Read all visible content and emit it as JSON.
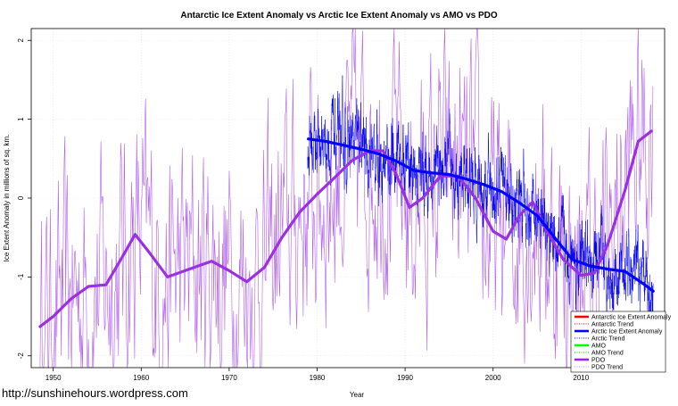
{
  "watermark": "http://sunshinehours.wordpress.com",
  "chart_data": {
    "type": "line",
    "title": "Antarctic Ice Extent Anomaly vs Arctic Ice Extent Anomaly vs AMO vs PDO",
    "xlabel": "Year",
    "ylabel": "Ice Extent Anomaly in millions of sq. km.",
    "xlim": [
      1947.5,
      2019.5
    ],
    "ylim": [
      -2.15,
      2.15
    ],
    "x_ticks": [
      1950,
      1960,
      1970,
      1980,
      1990,
      2000,
      2010
    ],
    "y_ticks": [
      -2,
      -1,
      0,
      1,
      2
    ],
    "grid": true,
    "legend_position": "bottom-right",
    "legend": [
      {
        "label": "Antarctic Ice Extent Anomaly",
        "color": "#ff0000",
        "style": "solid-thick"
      },
      {
        "label": "Antarctic Trend",
        "color": "#ff0000",
        "style": "dotted"
      },
      {
        "label": "Arctic Ice Extent Anomaly",
        "color": "#0000ff",
        "style": "solid-thick"
      },
      {
        "label": "Arctic Trend",
        "color": "#0000ff",
        "style": "dotted"
      },
      {
        "label": "AMO",
        "color": "#00ff00",
        "style": "solid-thick"
      },
      {
        "label": "AMO Trend",
        "color": "#00cc00",
        "style": "dotted"
      },
      {
        "label": "PDO",
        "color": "#a020f0",
        "style": "solid-thick"
      },
      {
        "label": "PDO Trend",
        "color": "#c080ff",
        "style": "dotted"
      }
    ],
    "series": [
      {
        "name": "PDO Trend",
        "color": "#9b30e0",
        "x": [
          1948.5,
          1950,
          1952,
          1954,
          1956,
          1958,
          1959.3,
          1961,
          1963,
          1966,
          1968,
          1970,
          1972,
          1974,
          1976,
          1978,
          1980,
          1982,
          1984,
          1986,
          1987.5,
          1989,
          1990.5,
          1992,
          1994,
          1996,
          1998,
          2000,
          2001.5,
          2003,
          2004.5,
          2006,
          2008,
          2010,
          2011.5,
          2013,
          2015,
          2016.5,
          2018
        ],
        "values": [
          -1.63,
          -1.5,
          -1.28,
          -1.12,
          -1.1,
          -0.72,
          -0.46,
          -0.7,
          -1.0,
          -0.88,
          -0.8,
          -0.92,
          -1.06,
          -0.88,
          -0.5,
          -0.18,
          0.05,
          0.26,
          0.48,
          0.6,
          0.6,
          0.3,
          -0.12,
          0.0,
          0.28,
          0.28,
          0.0,
          -0.42,
          -0.52,
          -0.22,
          -0.05,
          -0.4,
          -0.78,
          -0.98,
          -0.95,
          -0.6,
          0.1,
          0.72,
          0.85
        ]
      },
      {
        "name": "Arctic Trend",
        "color": "#0000ff",
        "x": [
          1979,
          1981,
          1983,
          1985,
          1987,
          1989,
          1991,
          1993,
          1995,
          1997,
          1999,
          2001,
          2003,
          2005,
          2007,
          2009,
          2011,
          2013,
          2015,
          2017,
          2018.2
        ],
        "values": [
          0.75,
          0.72,
          0.67,
          0.62,
          0.56,
          0.47,
          0.35,
          0.32,
          0.3,
          0.24,
          0.17,
          0.08,
          -0.06,
          -0.22,
          -0.5,
          -0.78,
          -0.86,
          -0.9,
          -0.93,
          -1.08,
          -1.18
        ]
      }
    ]
  }
}
